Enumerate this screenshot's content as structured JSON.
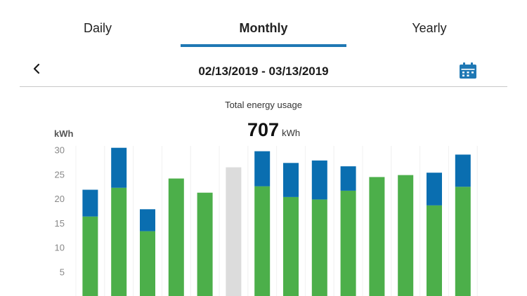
{
  "tabs": [
    {
      "label": "Daily",
      "active": false
    },
    {
      "label": "Monthly",
      "active": true
    },
    {
      "label": "Yearly",
      "active": false
    }
  ],
  "date_range": "02/13/2019 - 03/13/2019",
  "icons": {
    "back": "chevron-left-icon",
    "calendar": "calendar-icon"
  },
  "colors": {
    "accent": "#1f78b4",
    "green": "#4caf4a",
    "blue": "#0a6eb0",
    "gray": "#dcdcdc"
  },
  "summary": {
    "title": "Total energy usage",
    "total": "707",
    "unit": "kWh"
  },
  "chart_data": {
    "type": "bar",
    "stacked": true,
    "ylabel": "kWh",
    "yticks": [
      5,
      10,
      15,
      20,
      25,
      30
    ],
    "ylim": [
      0,
      31
    ],
    "grid": "vertical",
    "series": [
      {
        "color": "#4caf4a",
        "values": [
          16.3,
          22.2,
          13.3,
          24.1,
          21.2,
          0,
          22.5,
          20.3,
          19.8,
          21.6,
          24.4,
          24.8,
          18.6,
          22.4
        ]
      },
      {
        "color": "#0a6eb0",
        "values": [
          5.5,
          8.2,
          4.5,
          0,
          0,
          0,
          7.2,
          7.0,
          8.0,
          5.0,
          0,
          0,
          6.7,
          6.6
        ]
      },
      {
        "color": "#dcdcdc",
        "values": [
          0,
          0,
          0,
          0,
          0,
          26.4,
          0,
          0,
          0,
          0,
          0,
          0,
          0,
          0
        ]
      }
    ]
  }
}
